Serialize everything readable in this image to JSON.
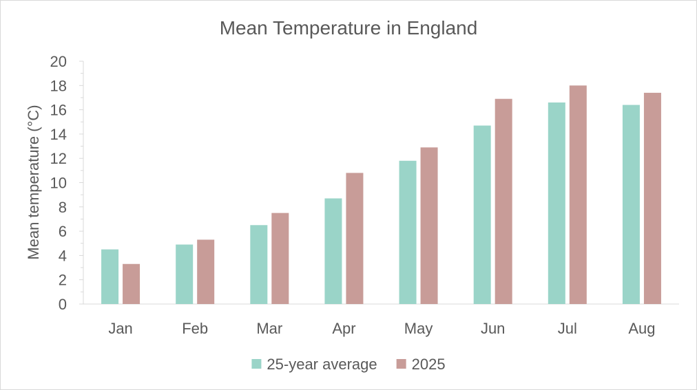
{
  "chart_data": {
    "type": "bar",
    "title": "Mean Temperature in England",
    "xlabel": "",
    "ylabel": "Mean temperature (°C)",
    "ylim": [
      0,
      20
    ],
    "yticks": [
      0,
      2,
      4,
      6,
      8,
      10,
      12,
      14,
      16,
      18,
      20
    ],
    "categories": [
      "Jan",
      "Feb",
      "Mar",
      "Apr",
      "May",
      "Jun",
      "Jul",
      "Aug"
    ],
    "series": [
      {
        "name": "25-year average",
        "color": "#9ad4c8",
        "values": [
          4.5,
          4.9,
          6.5,
          8.7,
          11.8,
          14.7,
          16.6,
          16.4
        ]
      },
      {
        "name": "2025",
        "color": "#c89c98",
        "values": [
          3.3,
          5.3,
          7.5,
          10.8,
          12.9,
          16.9,
          18.0,
          17.4
        ]
      }
    ],
    "legend": "bottom",
    "grid": false
  }
}
